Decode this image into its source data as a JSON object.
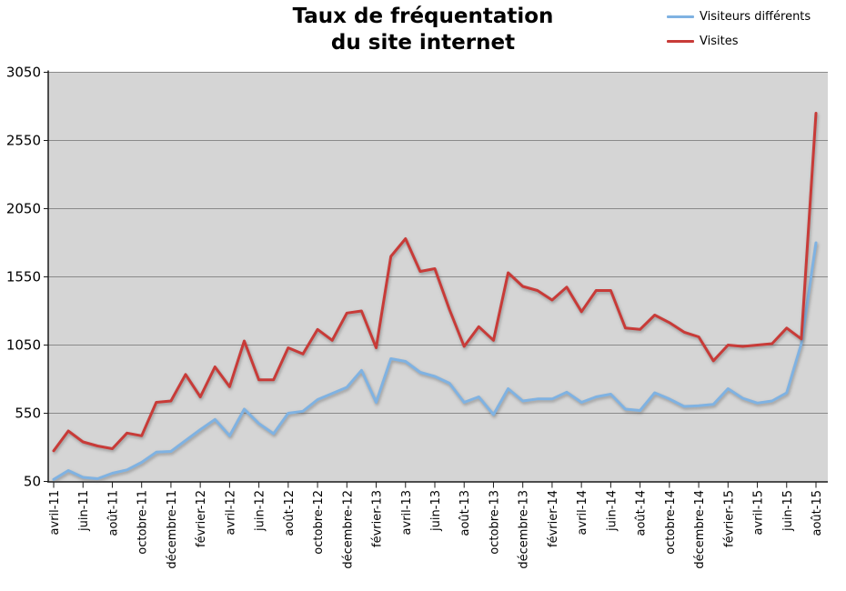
{
  "title": {
    "line1": "Taux de fréquentation",
    "line2": "du site internet"
  },
  "legend": {
    "items": [
      {
        "label": "Visiteurs différents",
        "color": "#7FB2E2"
      },
      {
        "label": "Visites",
        "color": "#C83B38"
      }
    ]
  },
  "y_axis": {
    "tick_labels": [
      "3050",
      "2550",
      "2050",
      "1550",
      "1050",
      "550",
      "50"
    ],
    "min": 50,
    "max": 3050,
    "step": 500
  },
  "x_axis": {
    "label_every": 2,
    "visible_labels": [
      "avril-11",
      "juin-11",
      "août-11",
      "octobre-11",
      "décembre-11",
      "février-12",
      "avril-12",
      "juin-12",
      "août-12",
      "octobre-12",
      "décembre-12",
      "février-13",
      "avril-13",
      "juin-13",
      "août-13",
      "octobre-13",
      "décembre-13",
      "février-14",
      "avril-14",
      "juin-14",
      "août-14",
      "octobre-14",
      "décembre-14",
      "février-15",
      "avril-15",
      "juin-15",
      "août-15"
    ]
  },
  "chart_data": {
    "type": "line",
    "title": "Taux de fréquentation du site internet",
    "ylim": [
      50,
      3050
    ],
    "grid": true,
    "plot_bg": "#D5D5D5",
    "grid_color": "#8A8A8A",
    "legend_position": "top-right",
    "x": [
      "avril-11",
      "mai-11",
      "juin-11",
      "juillet-11",
      "août-11",
      "septembre-11",
      "octobre-11",
      "novembre-11",
      "décembre-11",
      "janvier-12",
      "février-12",
      "mars-12",
      "avril-12",
      "mai-12",
      "juin-12",
      "juillet-12",
      "août-12",
      "septembre-12",
      "octobre-12",
      "novembre-12",
      "décembre-12",
      "janvier-13",
      "février-13",
      "mars-13",
      "avril-13",
      "mai-13",
      "juin-13",
      "juillet-13",
      "août-13",
      "septembre-13",
      "octobre-13",
      "novembre-13",
      "décembre-13",
      "janvier-14",
      "février-14",
      "mars-14",
      "avril-14",
      "mai-14",
      "juin-14",
      "juillet-14",
      "août-14",
      "septembre-14",
      "octobre-14",
      "novembre-14",
      "décembre-14",
      "janvier-15",
      "février-15",
      "mars-15",
      "avril-15",
      "mai-15",
      "juin-15",
      "juillet-15",
      "août-15"
    ],
    "series": [
      {
        "name": "Visiteurs différents",
        "color": "#7FB2E2",
        "values": [
          65,
          130,
          80,
          70,
          110,
          135,
          190,
          265,
          270,
          350,
          430,
          505,
          385,
          580,
          475,
          400,
          550,
          565,
          650,
          695,
          740,
          865,
          630,
          950,
          930,
          850,
          820,
          770,
          630,
          670,
          540,
          730,
          640,
          655,
          655,
          705,
          630,
          670,
          690,
          580,
          570,
          700,
          655,
          600,
          605,
          615,
          730,
          660,
          625,
          640,
          700,
          1060,
          1800
        ]
      },
      {
        "name": "Visites",
        "color": "#C83B38",
        "values": [
          275,
          420,
          340,
          310,
          290,
          405,
          385,
          630,
          640,
          835,
          670,
          890,
          745,
          1080,
          795,
          795,
          1030,
          985,
          1165,
          1085,
          1285,
          1300,
          1030,
          1700,
          1830,
          1590,
          1610,
          1310,
          1040,
          1185,
          1085,
          1580,
          1480,
          1450,
          1380,
          1475,
          1295,
          1450,
          1450,
          1175,
          1165,
          1270,
          1215,
          1145,
          1110,
          935,
          1050,
          1040,
          1050,
          1060,
          1175,
          1095,
          2750
        ]
      }
    ]
  }
}
